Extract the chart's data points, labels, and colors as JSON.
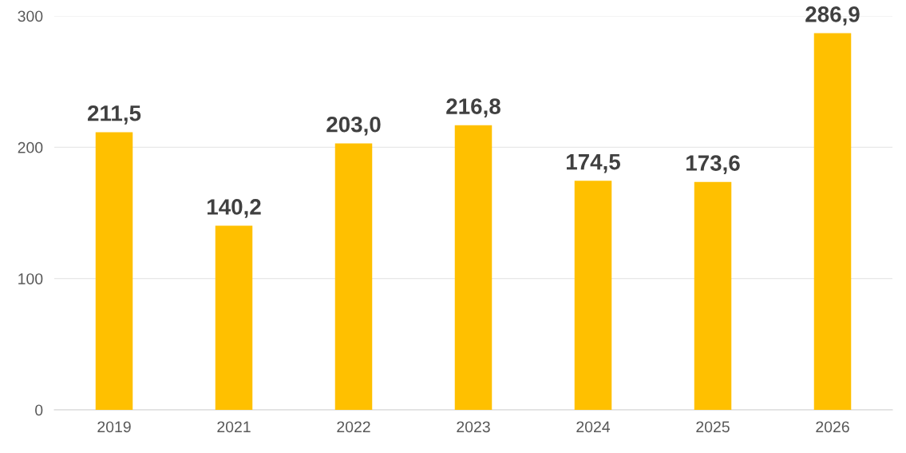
{
  "chart_data": {
    "type": "bar",
    "categories": [
      "2019",
      "2021",
      "2022",
      "2023",
      "2024",
      "2025",
      "2026"
    ],
    "values": [
      211.5,
      140.2,
      203.0,
      216.8,
      174.5,
      173.6,
      286.9
    ],
    "value_labels": [
      "211,5",
      "140,2",
      "203,0",
      "216,8",
      "174,5",
      "173,6",
      "286,9"
    ],
    "color": "#ffc000",
    "ylim": [
      0,
      300
    ],
    "yticks": [
      0,
      100,
      200,
      300
    ],
    "grid": "y",
    "legend": false
  }
}
